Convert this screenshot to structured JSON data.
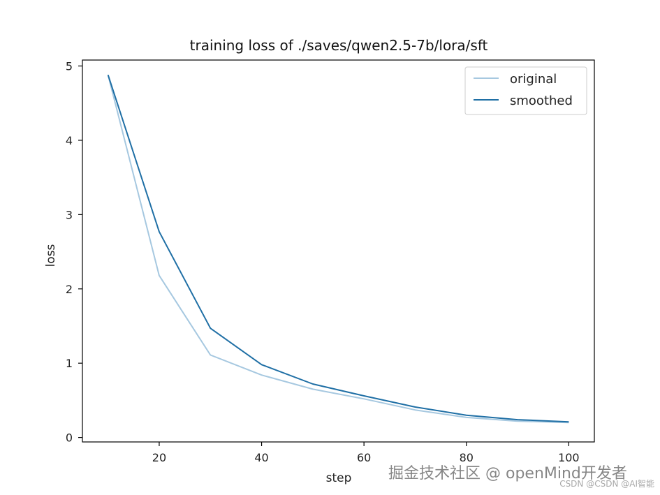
{
  "chart_data": {
    "type": "line",
    "title": "training loss of ./saves/qwen2.5-7b/lora/sft",
    "xlabel": "step",
    "ylabel": "loss",
    "xlim": [
      5,
      105
    ],
    "ylim": [
      -0.06,
      5.08
    ],
    "xticks": [
      20,
      40,
      60,
      80,
      100
    ],
    "yticks": [
      0,
      1,
      2,
      3,
      4,
      5
    ],
    "grid": false,
    "legend_position": "top-right",
    "x": [
      10,
      20,
      30,
      40,
      50,
      60,
      70,
      80,
      90,
      100
    ],
    "series": [
      {
        "name": "original",
        "color": "#a6c8e0",
        "values": [
          4.88,
          2.18,
          1.11,
          0.84,
          0.65,
          0.52,
          0.37,
          0.27,
          0.22,
          0.2
        ]
      },
      {
        "name": "smoothed",
        "color": "#1f6fa5",
        "values": [
          4.88,
          2.77,
          1.47,
          0.98,
          0.72,
          0.56,
          0.41,
          0.3,
          0.24,
          0.21
        ]
      }
    ]
  },
  "watermark": {
    "main": "掘金技术社区 @ openMind开发者",
    "sub": "CSDN @CSDN @AI智能"
  }
}
